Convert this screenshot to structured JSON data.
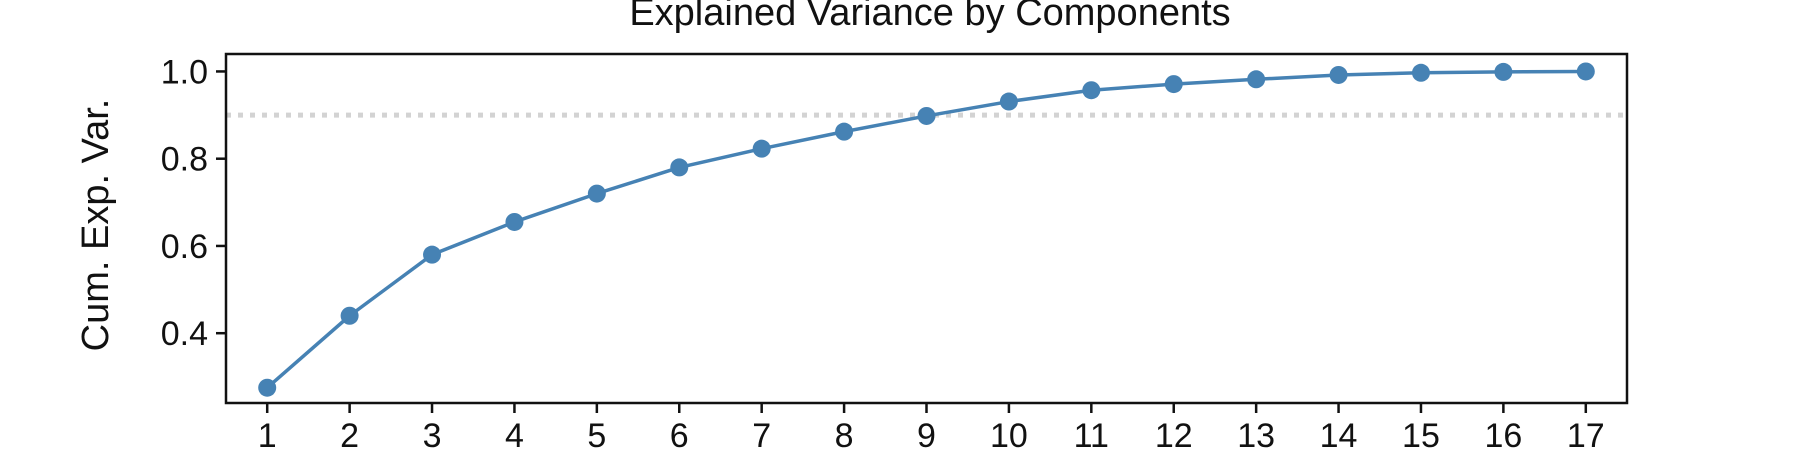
{
  "chart_data": {
    "type": "line",
    "title": "Explained Variance by Components",
    "xlabel": "",
    "ylabel": "Cum. Exp. Var.",
    "x": [
      1,
      2,
      3,
      4,
      5,
      6,
      7,
      8,
      9,
      10,
      11,
      12,
      13,
      14,
      15,
      16,
      17
    ],
    "x_tick_labels": [
      "1",
      "2",
      "3",
      "4",
      "5",
      "6",
      "7",
      "8",
      "9",
      "10",
      "11",
      "12",
      "13",
      "14",
      "15",
      "16",
      "17"
    ],
    "series": [
      {
        "name": "",
        "values": [
          0.275,
          0.44,
          0.58,
          0.655,
          0.72,
          0.78,
          0.823,
          0.862,
          0.898,
          0.931,
          0.957,
          0.971,
          0.982,
          0.992,
          0.997,
          0.999,
          1.0
        ],
        "color": "#4682b4"
      }
    ],
    "threshold": {
      "value": 0.9,
      "color": "#d3d3d3",
      "style": "dotted"
    },
    "y_ticks": [
      0.4,
      0.6,
      0.8,
      1.0
    ],
    "y_tick_labels": [
      "0.4",
      "0.6",
      "0.8",
      "1.0"
    ],
    "xlim": [
      0.5,
      17.5
    ],
    "ylim": [
      0.24,
      1.04
    ],
    "grid": false,
    "legend": "none"
  }
}
